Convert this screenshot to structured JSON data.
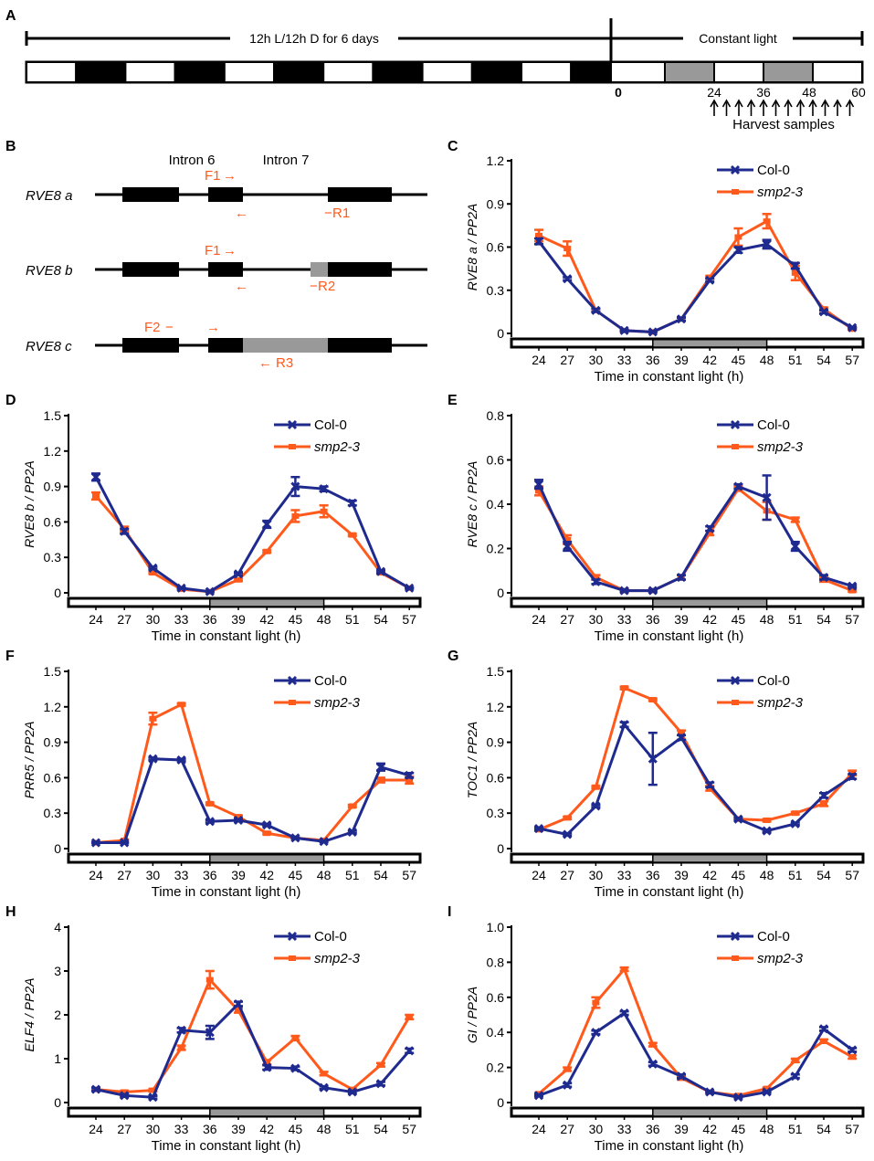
{
  "colors": {
    "col0": "#1f2a8f",
    "smp": "#ff5a1c",
    "black": "#000000",
    "gray": "#999999"
  },
  "panel_a": {
    "label": "A",
    "ld_text": "12h L/12h D for 6 days",
    "ll_text": "Constant light",
    "zero": "0",
    "ticks": [
      "24",
      "36",
      "48",
      "60"
    ],
    "harvest": "Harvest samples"
  },
  "panel_b": {
    "label": "B",
    "intron6": "Intron 6",
    "intron7": "Intron 7",
    "genes": [
      "RVE8 a",
      "RVE8 b",
      "RVE8 c"
    ],
    "primers": {
      "f1": "F1",
      "f2": "F2",
      "r1": "R1",
      "r2": "R2",
      "r3": "R3"
    }
  },
  "chart_data": [
    {
      "type": "line",
      "label": "C",
      "ylabel": "RVE8 a / PP2A",
      "xlabel": "Time in constant light (h)",
      "categories": [
        "24",
        "27",
        "30",
        "33",
        "36",
        "39",
        "42",
        "45",
        "48",
        "51",
        "54",
        "57"
      ],
      "yticks": [
        "0",
        "0.3",
        "0.6",
        "0.9",
        "1.2"
      ],
      "ylim": [
        0,
        1.2
      ],
      "series": [
        {
          "name": "Col-0",
          "values": [
            0.64,
            0.38,
            0.16,
            0.02,
            0.01,
            0.1,
            0.37,
            0.58,
            0.62,
            0.47,
            0.15,
            0.04
          ],
          "errors": [
            0.02,
            0.01,
            0.01,
            0.005,
            0.005,
            0.01,
            0.01,
            0.02,
            0.03,
            0.02,
            0.01,
            0.005
          ]
        },
        {
          "name": "smp2-3",
          "values": [
            0.68,
            0.59,
            0.16,
            0.02,
            0.01,
            0.1,
            0.39,
            0.67,
            0.78,
            0.42,
            0.17,
            0.03
          ],
          "errors": [
            0.04,
            0.05,
            0.01,
            0.005,
            0.005,
            0.01,
            0.01,
            0.06,
            0.05,
            0.05,
            0.01,
            0.005
          ]
        }
      ]
    },
    {
      "type": "line",
      "label": "D",
      "ylabel": "RVE8 b / PP2A",
      "xlabel": "Time in constant light (h)",
      "categories": [
        "24",
        "27",
        "30",
        "33",
        "36",
        "39",
        "42",
        "45",
        "48",
        "51",
        "54",
        "57"
      ],
      "yticks": [
        "0",
        "0.3",
        "0.6",
        "0.9",
        "1.2",
        "1.5"
      ],
      "ylim": [
        0,
        1.5
      ],
      "series": [
        {
          "name": "Col-0",
          "values": [
            0.98,
            0.52,
            0.21,
            0.04,
            0.01,
            0.16,
            0.58,
            0.9,
            0.88,
            0.76,
            0.18,
            0.04
          ],
          "errors": [
            0.03,
            0.02,
            0.01,
            0.005,
            0.005,
            0.01,
            0.03,
            0.08,
            0.02,
            0.02,
            0.01,
            0.005
          ]
        },
        {
          "name": "smp2-3",
          "values": [
            0.82,
            0.54,
            0.17,
            0.03,
            0.01,
            0.11,
            0.35,
            0.65,
            0.69,
            0.49,
            0.17,
            0.04
          ],
          "errors": [
            0.03,
            0.02,
            0.01,
            0.005,
            0.005,
            0.01,
            0.01,
            0.05,
            0.05,
            0.01,
            0.01,
            0.005
          ]
        }
      ]
    },
    {
      "type": "line",
      "label": "E",
      "ylabel": "RVE8 c / PP2A",
      "xlabel": "Time in constant light (h)",
      "categories": [
        "24",
        "27",
        "30",
        "33",
        "36",
        "39",
        "42",
        "45",
        "48",
        "51",
        "54",
        "57"
      ],
      "yticks": [
        "0",
        "0.2",
        "0.4",
        "0.6",
        "0.8"
      ],
      "ylim": [
        0,
        0.8
      ],
      "series": [
        {
          "name": "Col-0",
          "values": [
            0.49,
            0.21,
            0.05,
            0.01,
            0.01,
            0.07,
            0.29,
            0.48,
            0.43,
            0.21,
            0.07,
            0.03
          ],
          "errors": [
            0.02,
            0.02,
            0.01,
            0.005,
            0.005,
            0.01,
            0.01,
            0.01,
            0.1,
            0.02,
            0.01,
            0.005
          ]
        },
        {
          "name": "smp2-3",
          "values": [
            0.46,
            0.24,
            0.07,
            0.01,
            0.01,
            0.07,
            0.27,
            0.47,
            0.37,
            0.33,
            0.06,
            0.01
          ],
          "errors": [
            0.02,
            0.02,
            0.01,
            0.005,
            0.005,
            0.01,
            0.01,
            0.01,
            0.04,
            0.01,
            0.01,
            0.005
          ]
        }
      ]
    },
    {
      "type": "line",
      "label": "F",
      "ylabel": "PRR5 / PP2A",
      "xlabel": "Time in constant light (h)",
      "categories": [
        "24",
        "27",
        "30",
        "33",
        "36",
        "39",
        "42",
        "45",
        "48",
        "51",
        "54",
        "57"
      ],
      "yticks": [
        "0",
        "0.3",
        "0.6",
        "0.9",
        "1.2",
        "1.5"
      ],
      "ylim": [
        0,
        1.5
      ],
      "series": [
        {
          "name": "Col-0",
          "values": [
            0.05,
            0.05,
            0.76,
            0.75,
            0.23,
            0.24,
            0.2,
            0.09,
            0.06,
            0.14,
            0.69,
            0.62
          ],
          "errors": [
            0.005,
            0.005,
            0.01,
            0.01,
            0.01,
            0.01,
            0.01,
            0.005,
            0.005,
            0.01,
            0.03,
            0.02
          ]
        },
        {
          "name": "smp2-3",
          "values": [
            0.05,
            0.07,
            1.1,
            1.22,
            0.38,
            0.27,
            0.13,
            0.09,
            0.07,
            0.36,
            0.58,
            0.58
          ],
          "errors": [
            0.005,
            0.005,
            0.05,
            0.01,
            0.01,
            0.01,
            0.01,
            0.005,
            0.005,
            0.01,
            0.02,
            0.03
          ]
        }
      ]
    },
    {
      "type": "line",
      "label": "G",
      "ylabel": "TOC1 / PP2A",
      "xlabel": "Time in constant light (h)",
      "categories": [
        "24",
        "27",
        "30",
        "33",
        "36",
        "39",
        "42",
        "45",
        "48",
        "51",
        "54",
        "57"
      ],
      "yticks": [
        "0",
        "0.3",
        "0.6",
        "0.9",
        "1.2",
        "1.5"
      ],
      "ylim": [
        0,
        1.5
      ],
      "series": [
        {
          "name": "Col-0",
          "values": [
            0.17,
            0.12,
            0.36,
            1.05,
            0.76,
            0.94,
            0.54,
            0.25,
            0.15,
            0.21,
            0.45,
            0.61
          ],
          "errors": [
            0.01,
            0.01,
            0.01,
            0.02,
            0.22,
            0.02,
            0.02,
            0.01,
            0.01,
            0.01,
            0.02,
            0.02
          ]
        },
        {
          "name": "smp2-3",
          "values": [
            0.16,
            0.26,
            0.52,
            1.36,
            1.26,
            0.98,
            0.51,
            0.25,
            0.24,
            0.3,
            0.38,
            0.64
          ],
          "errors": [
            0.01,
            0.01,
            0.01,
            0.01,
            0.01,
            0.02,
            0.02,
            0.01,
            0.01,
            0.01,
            0.02,
            0.02
          ]
        }
      ]
    },
    {
      "type": "line",
      "label": "H",
      "ylabel": "ELF4 / PP2A",
      "xlabel": "Time in constant light (h)",
      "categories": [
        "24",
        "27",
        "30",
        "33",
        "36",
        "39",
        "42",
        "45",
        "48",
        "51",
        "54",
        "57"
      ],
      "yticks": [
        "0",
        "1",
        "2",
        "3",
        "4"
      ],
      "ylim": [
        0,
        4
      ],
      "series": [
        {
          "name": "Col-0",
          "values": [
            0.3,
            0.16,
            0.12,
            1.65,
            1.6,
            2.25,
            0.8,
            0.78,
            0.34,
            0.24,
            0.43,
            1.18
          ],
          "errors": [
            0.03,
            0.03,
            0.03,
            0.05,
            0.15,
            0.05,
            0.05,
            0.04,
            0.03,
            0.03,
            0.04,
            0.05
          ]
        },
        {
          "name": "smp2-3",
          "values": [
            0.3,
            0.24,
            0.28,
            1.25,
            2.8,
            2.1,
            0.92,
            1.47,
            0.66,
            0.3,
            0.86,
            1.95
          ],
          "errors": [
            0.03,
            0.03,
            0.03,
            0.05,
            0.2,
            0.05,
            0.05,
            0.05,
            0.04,
            0.03,
            0.04,
            0.05
          ]
        }
      ]
    },
    {
      "type": "line",
      "label": "I",
      "ylabel": "GI / PP2A",
      "xlabel": "Time in constant light (h)",
      "categories": [
        "24",
        "27",
        "30",
        "33",
        "36",
        "39",
        "42",
        "45",
        "48",
        "51",
        "54",
        "57"
      ],
      "yticks": [
        "0",
        "0.2",
        "0.4",
        "0.6",
        "0.8",
        "1.0"
      ],
      "ylim": [
        0,
        1.0
      ],
      "series": [
        {
          "name": "Col-0",
          "values": [
            0.04,
            0.1,
            0.4,
            0.51,
            0.22,
            0.15,
            0.06,
            0.03,
            0.06,
            0.15,
            0.42,
            0.3
          ],
          "errors": [
            0.005,
            0.01,
            0.01,
            0.01,
            0.01,
            0.01,
            0.005,
            0.005,
            0.005,
            0.01,
            0.01,
            0.01
          ]
        },
        {
          "name": "smp2-3",
          "values": [
            0.05,
            0.19,
            0.57,
            0.76,
            0.33,
            0.14,
            0.06,
            0.04,
            0.08,
            0.24,
            0.35,
            0.26
          ],
          "errors": [
            0.005,
            0.01,
            0.03,
            0.01,
            0.01,
            0.01,
            0.005,
            0.005,
            0.005,
            0.01,
            0.01,
            0.01
          ]
        }
      ]
    }
  ]
}
